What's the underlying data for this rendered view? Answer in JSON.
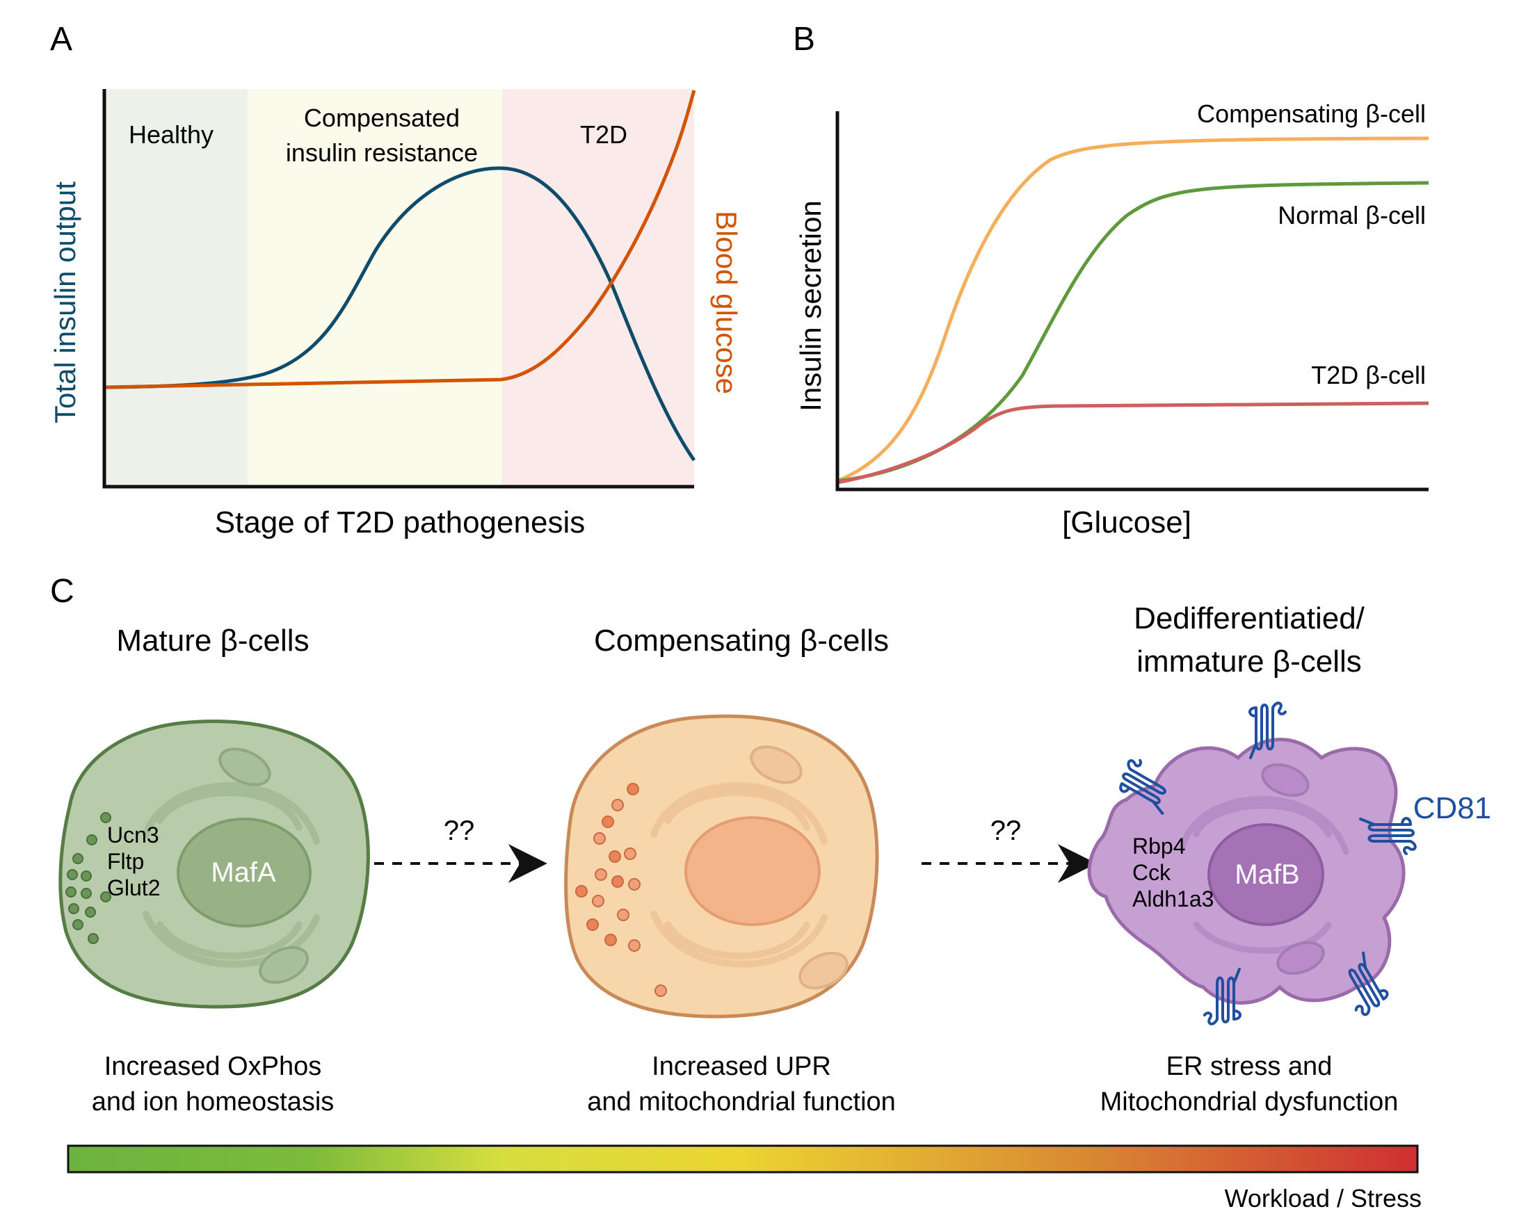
{
  "panels": {
    "a": {
      "label": "A"
    },
    "b": {
      "label": "B"
    },
    "c": {
      "label": "C"
    }
  },
  "panel_a": {
    "stage_healthy": "Healthy",
    "stage_compensated_line1": "Compensated",
    "stage_compensated_line2": "insulin resistance",
    "stage_t2d": "T2D",
    "ylabel_left": "Total insulin output",
    "ylabel_right": "Blood glucose",
    "xlabel": "Stage of T2D pathogenesis",
    "colors": {
      "insulin": "#0f4c6b",
      "glucose": "#d35400",
      "healthy_bg": "#edf1ea",
      "compensated_bg": "#fbfbec",
      "t2d_bg": "#fbeaea"
    }
  },
  "panel_b": {
    "ylabel": "Insulin secretion",
    "xlabel": "[Glucose]",
    "series": [
      {
        "name": "Compensating β-cell",
        "color": "#f5ae5a"
      },
      {
        "name": "Normal β-cell",
        "color": "#5e9a3c"
      },
      {
        "name": "T2D β-cell",
        "color": "#cd5f5f"
      }
    ]
  },
  "panel_c": {
    "titles": {
      "mature": "Mature β-cells",
      "compensating": "Compensating β-cells",
      "dediff_line1": "Dedifferentiatied/",
      "dediff_line2": "immature β-cells"
    },
    "nuclei": {
      "mature": "MafA",
      "dediff": "MafB"
    },
    "markers_mature": [
      "Ucn3",
      "Fltp",
      "Glut2"
    ],
    "markers_dediff": [
      "Rbp4",
      "Cck",
      "Aldh1a3"
    ],
    "receptor_label": "CD81",
    "arrow_labels": [
      "??",
      "??"
    ],
    "descriptions": {
      "mature_line1": "Increased OxPhos",
      "mature_line2": "and ion homeostasis",
      "compensating_line1": "Increased UPR",
      "compensating_line2": "and mitochondrial function",
      "dediff_line1": "ER stress and",
      "dediff_line2": "Mitochondrial dysfunction"
    },
    "gradient_label": "Workload / Stress",
    "colors": {
      "mature_cell": "#b8ccab",
      "compensating_cell": "#f8d6ab",
      "dediff_cell": "#c69fd3",
      "receptor": "#1f4f9e"
    }
  }
}
